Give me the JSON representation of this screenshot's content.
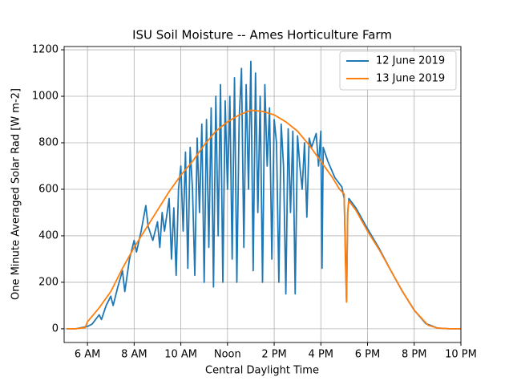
{
  "chart_data": {
    "type": "line",
    "title": "ISU Soil Moisture -- Ames Horticulture Farm",
    "xlabel": "Central Daylight Time",
    "ylabel": "One Minute Averaged Solar Rad [W m-2]",
    "xlim": [
      5,
      22
    ],
    "ylim": [
      -59,
      1214
    ],
    "xticks": [
      {
        "value": 6,
        "label": "6 AM"
      },
      {
        "value": 8,
        "label": "8 AM"
      },
      {
        "value": 10,
        "label": "10 AM"
      },
      {
        "value": 12,
        "label": "Noon"
      },
      {
        "value": 14,
        "label": "2 PM"
      },
      {
        "value": 16,
        "label": "4 PM"
      },
      {
        "value": 18,
        "label": "6 PM"
      },
      {
        "value": 20,
        "label": "8 PM"
      },
      {
        "value": 22,
        "label": "10 PM"
      }
    ],
    "yticks": [
      0,
      200,
      400,
      600,
      800,
      1000,
      1200
    ],
    "grid": true,
    "legend": "upper right",
    "series": [
      {
        "name": "12 June 2019",
        "color": "#1f77b4",
        "x": [
          5.1,
          5.5,
          6,
          6.2,
          6.5,
          6.6,
          6.8,
          7,
          7.1,
          7.3,
          7.5,
          7.6,
          7.8,
          8,
          8.1,
          8.3,
          8.5,
          8.6,
          8.8,
          9,
          9.1,
          9.2,
          9.3,
          9.5,
          9.6,
          9.7,
          9.8,
          9.9,
          10,
          10.1,
          10.2,
          10.3,
          10.4,
          10.5,
          10.6,
          10.7,
          10.8,
          10.9,
          11,
          11.1,
          11.2,
          11.3,
          11.4,
          11.5,
          11.6,
          11.7,
          11.8,
          11.9,
          12,
          12.1,
          12.2,
          12.3,
          12.4,
          12.5,
          12.6,
          12.7,
          12.8,
          12.9,
          13,
          13.1,
          13.2,
          13.3,
          13.4,
          13.5,
          13.6,
          13.7,
          13.8,
          13.9,
          14,
          14.1,
          14.2,
          14.3,
          14.4,
          14.5,
          14.6,
          14.7,
          14.8,
          14.9,
          15,
          15.1,
          15.2,
          15.3,
          15.4,
          15.5,
          15.6,
          15.8,
          15.9,
          16,
          16.05,
          16.1,
          16.3,
          16.6,
          16.9,
          17.0,
          17.1,
          17.15,
          17.2,
          17.5,
          18,
          18.5,
          19,
          19.5,
          20,
          20.5,
          21,
          21.5,
          22
        ],
        "values": [
          0,
          0,
          10,
          20,
          60,
          40,
          100,
          140,
          100,
          180,
          250,
          160,
          300,
          380,
          330,
          420,
          530,
          440,
          380,
          460,
          350,
          500,
          420,
          560,
          300,
          520,
          230,
          600,
          700,
          420,
          760,
          260,
          780,
          600,
          230,
          820,
          500,
          880,
          200,
          900,
          350,
          950,
          180,
          1000,
          400,
          1050,
          200,
          980,
          600,
          1000,
          300,
          1080,
          200,
          900,
          1120,
          350,
          1050,
          600,
          1150,
          250,
          1100,
          500,
          1000,
          200,
          1050,
          700,
          950,
          300,
          900,
          800,
          200,
          880,
          700,
          150,
          860,
          500,
          850,
          150,
          830,
          700,
          600,
          800,
          480,
          820,
          780,
          840,
          700,
          850,
          260,
          780,
          720,
          650,
          610,
          560,
          120,
          500,
          560,
          520,
          430,
          345,
          250,
          160,
          80,
          22,
          3,
          0,
          0
        ]
      },
      {
        "name": "13 June 2019",
        "color": "#ff7f0e",
        "x": [
          5.1,
          5.5,
          5.9,
          6.0,
          6.5,
          7,
          7.5,
          8,
          8.5,
          9,
          9.5,
          10,
          10.5,
          11,
          11.5,
          12,
          12.5,
          13,
          13.5,
          14,
          14.5,
          15,
          15.5,
          16,
          16.5,
          16.8,
          16.9,
          17.0,
          17.05,
          17.1,
          17.15,
          17.2,
          17.5,
          18,
          18.5,
          19,
          19.5,
          20,
          20.5,
          20.6,
          21,
          21.5,
          22
        ],
        "values": [
          0,
          0,
          5,
          30,
          90,
          160,
          260,
          350,
          430,
          510,
          590,
          660,
          720,
          790,
          850,
          890,
          920,
          940,
          935,
          920,
          890,
          850,
          790,
          720,
          650,
          600,
          590,
          580,
          300,
          115,
          500,
          550,
          510,
          420,
          340,
          250,
          160,
          80,
          25,
          15,
          3,
          0,
          0
        ]
      }
    ]
  }
}
